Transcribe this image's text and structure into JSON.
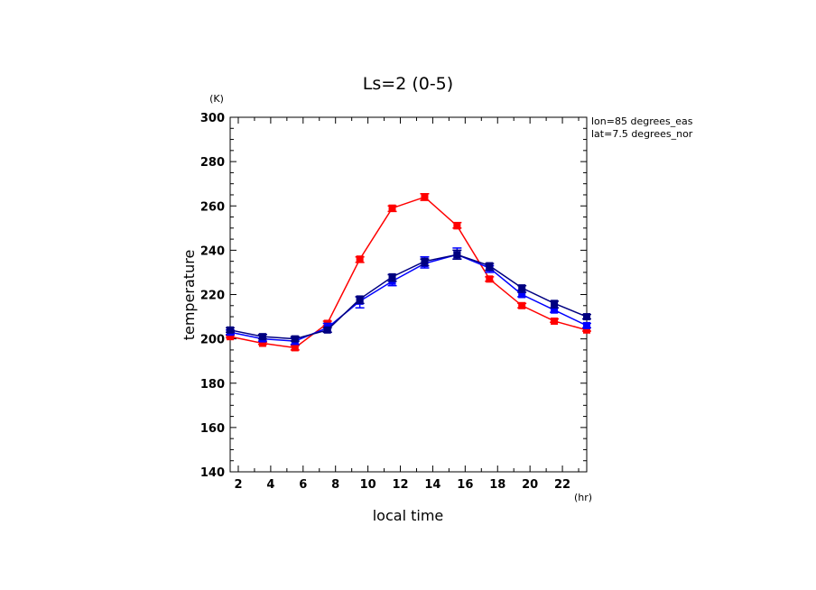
{
  "chart_data": {
    "type": "line",
    "title": "Ls=2 (0-5)",
    "xlabel": "local time",
    "ylabel": "temperature",
    "x_unit": "(hr)",
    "y_unit": "(K)",
    "annotations": [
      "lon=85 degrees_eas",
      "lat=7.5 degrees_nor"
    ],
    "xlim": [
      1.5,
      23.5
    ],
    "ylim": [
      140,
      300
    ],
    "x_ticks": [
      "2",
      "4",
      "6",
      "8",
      "10",
      "12",
      "14",
      "16",
      "18",
      "20",
      "22"
    ],
    "y_ticks": [
      "140",
      "160",
      "180",
      "200",
      "220",
      "240",
      "260",
      "280",
      "300"
    ],
    "x": [
      1.5,
      3.5,
      5.5,
      7.5,
      9.5,
      11.5,
      13.5,
      15.5,
      17.5,
      19.5,
      21.5,
      23.5
    ],
    "series": [
      {
        "color": "#ff0000",
        "values": [
          201,
          198,
          196,
          207,
          236,
          259,
          264,
          251,
          227,
          215,
          208,
          204
        ],
        "errors": [
          [
            200.5,
            201.5
          ],
          [
            197.5,
            198.5
          ],
          [
            195,
            197
          ],
          [
            206,
            208
          ],
          [
            234.5,
            237
          ],
          [
            257.5,
            260
          ],
          [
            262.5,
            265.5
          ],
          [
            250,
            252.5
          ],
          [
            226,
            228
          ],
          [
            214,
            216
          ],
          [
            207.5,
            209
          ],
          [
            203.5,
            205
          ]
        ]
      },
      {
        "color": "#0000ff",
        "values": [
          203,
          200,
          199,
          205,
          217,
          226,
          234,
          238,
          232,
          220,
          213,
          206
        ],
        "errors": [
          [
            202,
            204
          ],
          [
            199,
            202
          ],
          [
            197.5,
            200.5
          ],
          [
            203,
            207
          ],
          [
            214,
            219
          ],
          [
            224,
            229
          ],
          [
            232,
            237
          ],
          [
            236,
            241
          ],
          [
            230,
            233
          ],
          [
            219,
            222
          ],
          [
            212,
            214
          ],
          [
            205,
            207
          ]
        ]
      },
      {
        "color": "#000080",
        "values": [
          204,
          201,
          200,
          204,
          218,
          228,
          235,
          238,
          233,
          223,
          216,
          210
        ],
        "errors": [
          [
            203,
            205
          ],
          [
            200,
            202
          ],
          [
            199,
            201
          ],
          [
            203,
            205
          ],
          [
            216,
            219
          ],
          [
            226,
            229
          ],
          [
            233,
            236
          ],
          [
            236,
            240
          ],
          [
            231,
            234
          ],
          [
            221,
            224
          ],
          [
            214,
            217
          ],
          [
            209,
            211
          ]
        ]
      }
    ]
  }
}
